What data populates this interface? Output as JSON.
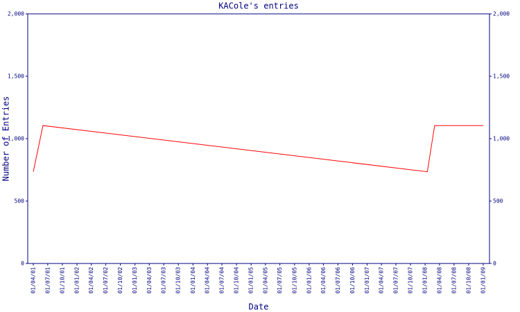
{
  "chart_data": {
    "type": "line",
    "title": "KACole's entries",
    "x_label": "Date",
    "y_label": "Number of Entries",
    "x": [
      "01/04/01",
      "01/06/01",
      "15/01/08",
      "01/03/08",
      "01/01/09"
    ],
    "series": [
      {
        "name": "entries",
        "color": "#ff0000",
        "values": [
          735,
          1105,
          735,
          1105,
          1105
        ]
      }
    ],
    "xlim": [
      "01/04/01",
      "01/01/09"
    ],
    "xticks": [
      "01/04/01",
      "01/07/01",
      "01/10/01",
      "01/01/02",
      "01/04/02",
      "01/07/02",
      "01/10/02",
      "01/01/03",
      "01/04/03",
      "01/07/03",
      "01/10/03",
      "01/01/04",
      "01/04/04",
      "01/07/04",
      "01/10/04",
      "01/01/05",
      "01/04/05",
      "01/07/05",
      "01/10/05",
      "01/01/06",
      "01/04/06",
      "01/07/06",
      "01/10/06",
      "01/01/07",
      "01/04/07",
      "01/07/07",
      "01/10/07",
      "01/01/08",
      "01/04/08",
      "01/07/08",
      "01/10/08",
      "01/01/09"
    ],
    "ylim": [
      0,
      2000
    ],
    "yticks": [
      0,
      500,
      {
        "value": 1000,
        "label": "1,000"
      },
      {
        "value": 1500,
        "label": "1,500"
      },
      {
        "value": 2000,
        "label": "2,000"
      }
    ],
    "y2lim": [
      0,
      2000
    ],
    "y2ticks": [
      0,
      500,
      {
        "value": 1000,
        "label": "1,000"
      },
      {
        "value": 1500,
        "label": "1,500"
      },
      {
        "value": 2000,
        "label": "2,000"
      }
    ],
    "axis_color": "#000080"
  }
}
